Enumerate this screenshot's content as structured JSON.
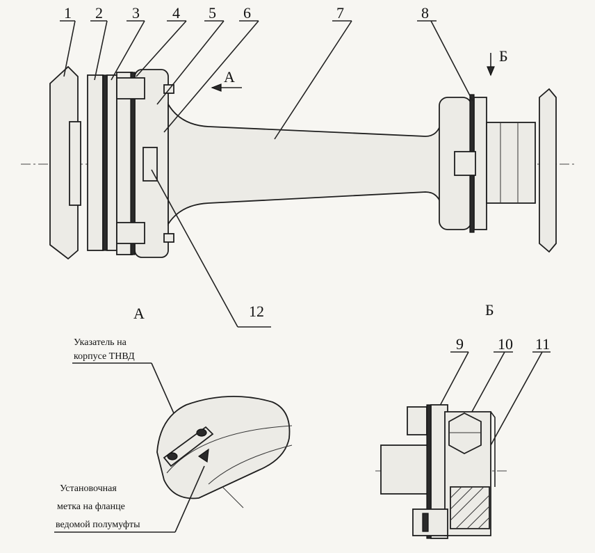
{
  "labels": {
    "n1": "1",
    "n2": "2",
    "n3": "3",
    "n4": "4",
    "n5": "5",
    "n6": "6",
    "n7": "7",
    "n8": "8",
    "n9": "9",
    "n10": "10",
    "n11": "11",
    "n12": "12"
  },
  "arrows": {
    "a": "А",
    "b": "Б"
  },
  "views": {
    "a_title": "А",
    "b_title": "Б"
  },
  "notes": {
    "pointer_line1": "Указатель на",
    "pointer_line2": "корпусе ТНВД",
    "mark_line1": "Установочная",
    "mark_line2": "метка на фланце",
    "mark_line3": "ведомой полумуфты"
  }
}
